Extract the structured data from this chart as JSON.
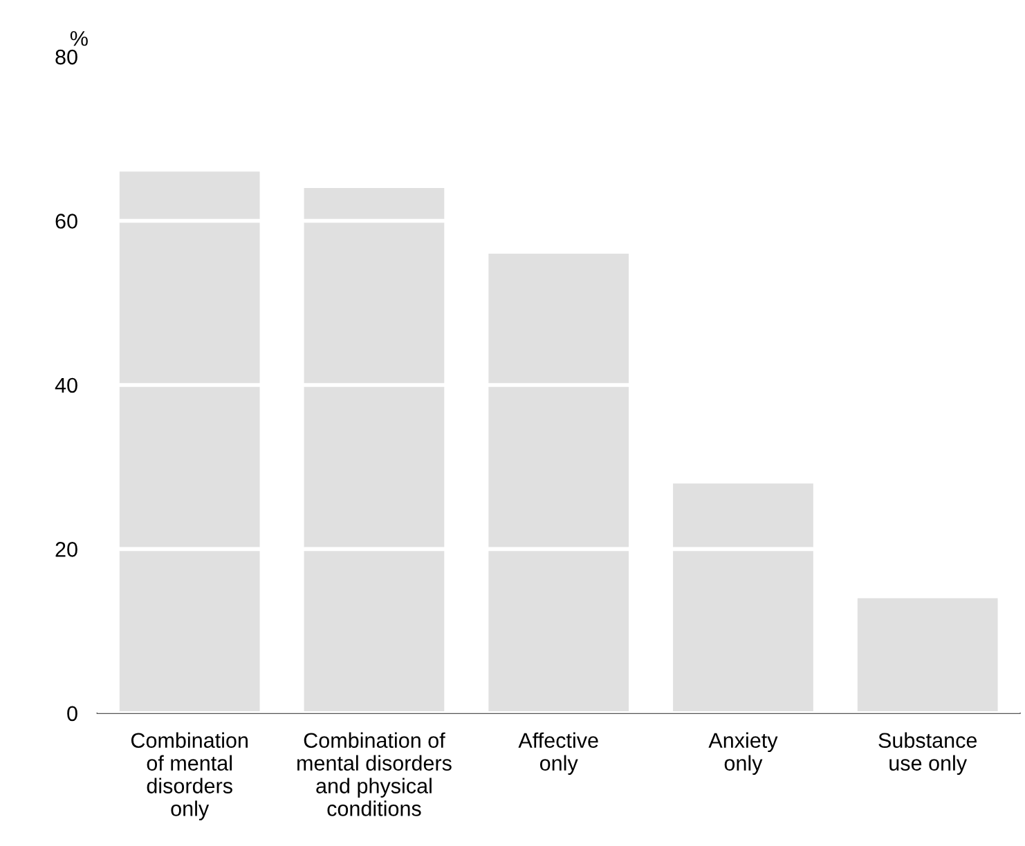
{
  "chart_data": {
    "type": "bar",
    "ylabel": "%",
    "categories": [
      "Combination\nof mental\ndisorders\nonly",
      "Combination of\nmental disorders\nand physical\nconditions",
      "Affective\nonly",
      "Anxiety\nonly",
      "Substance\nuse only"
    ],
    "values": [
      66,
      64,
      56,
      28,
      14
    ],
    "color": "#e0e0e0",
    "ylim": [
      0,
      80
    ],
    "yticks": [
      0,
      20,
      40,
      60,
      80
    ],
    "grid": "y"
  }
}
